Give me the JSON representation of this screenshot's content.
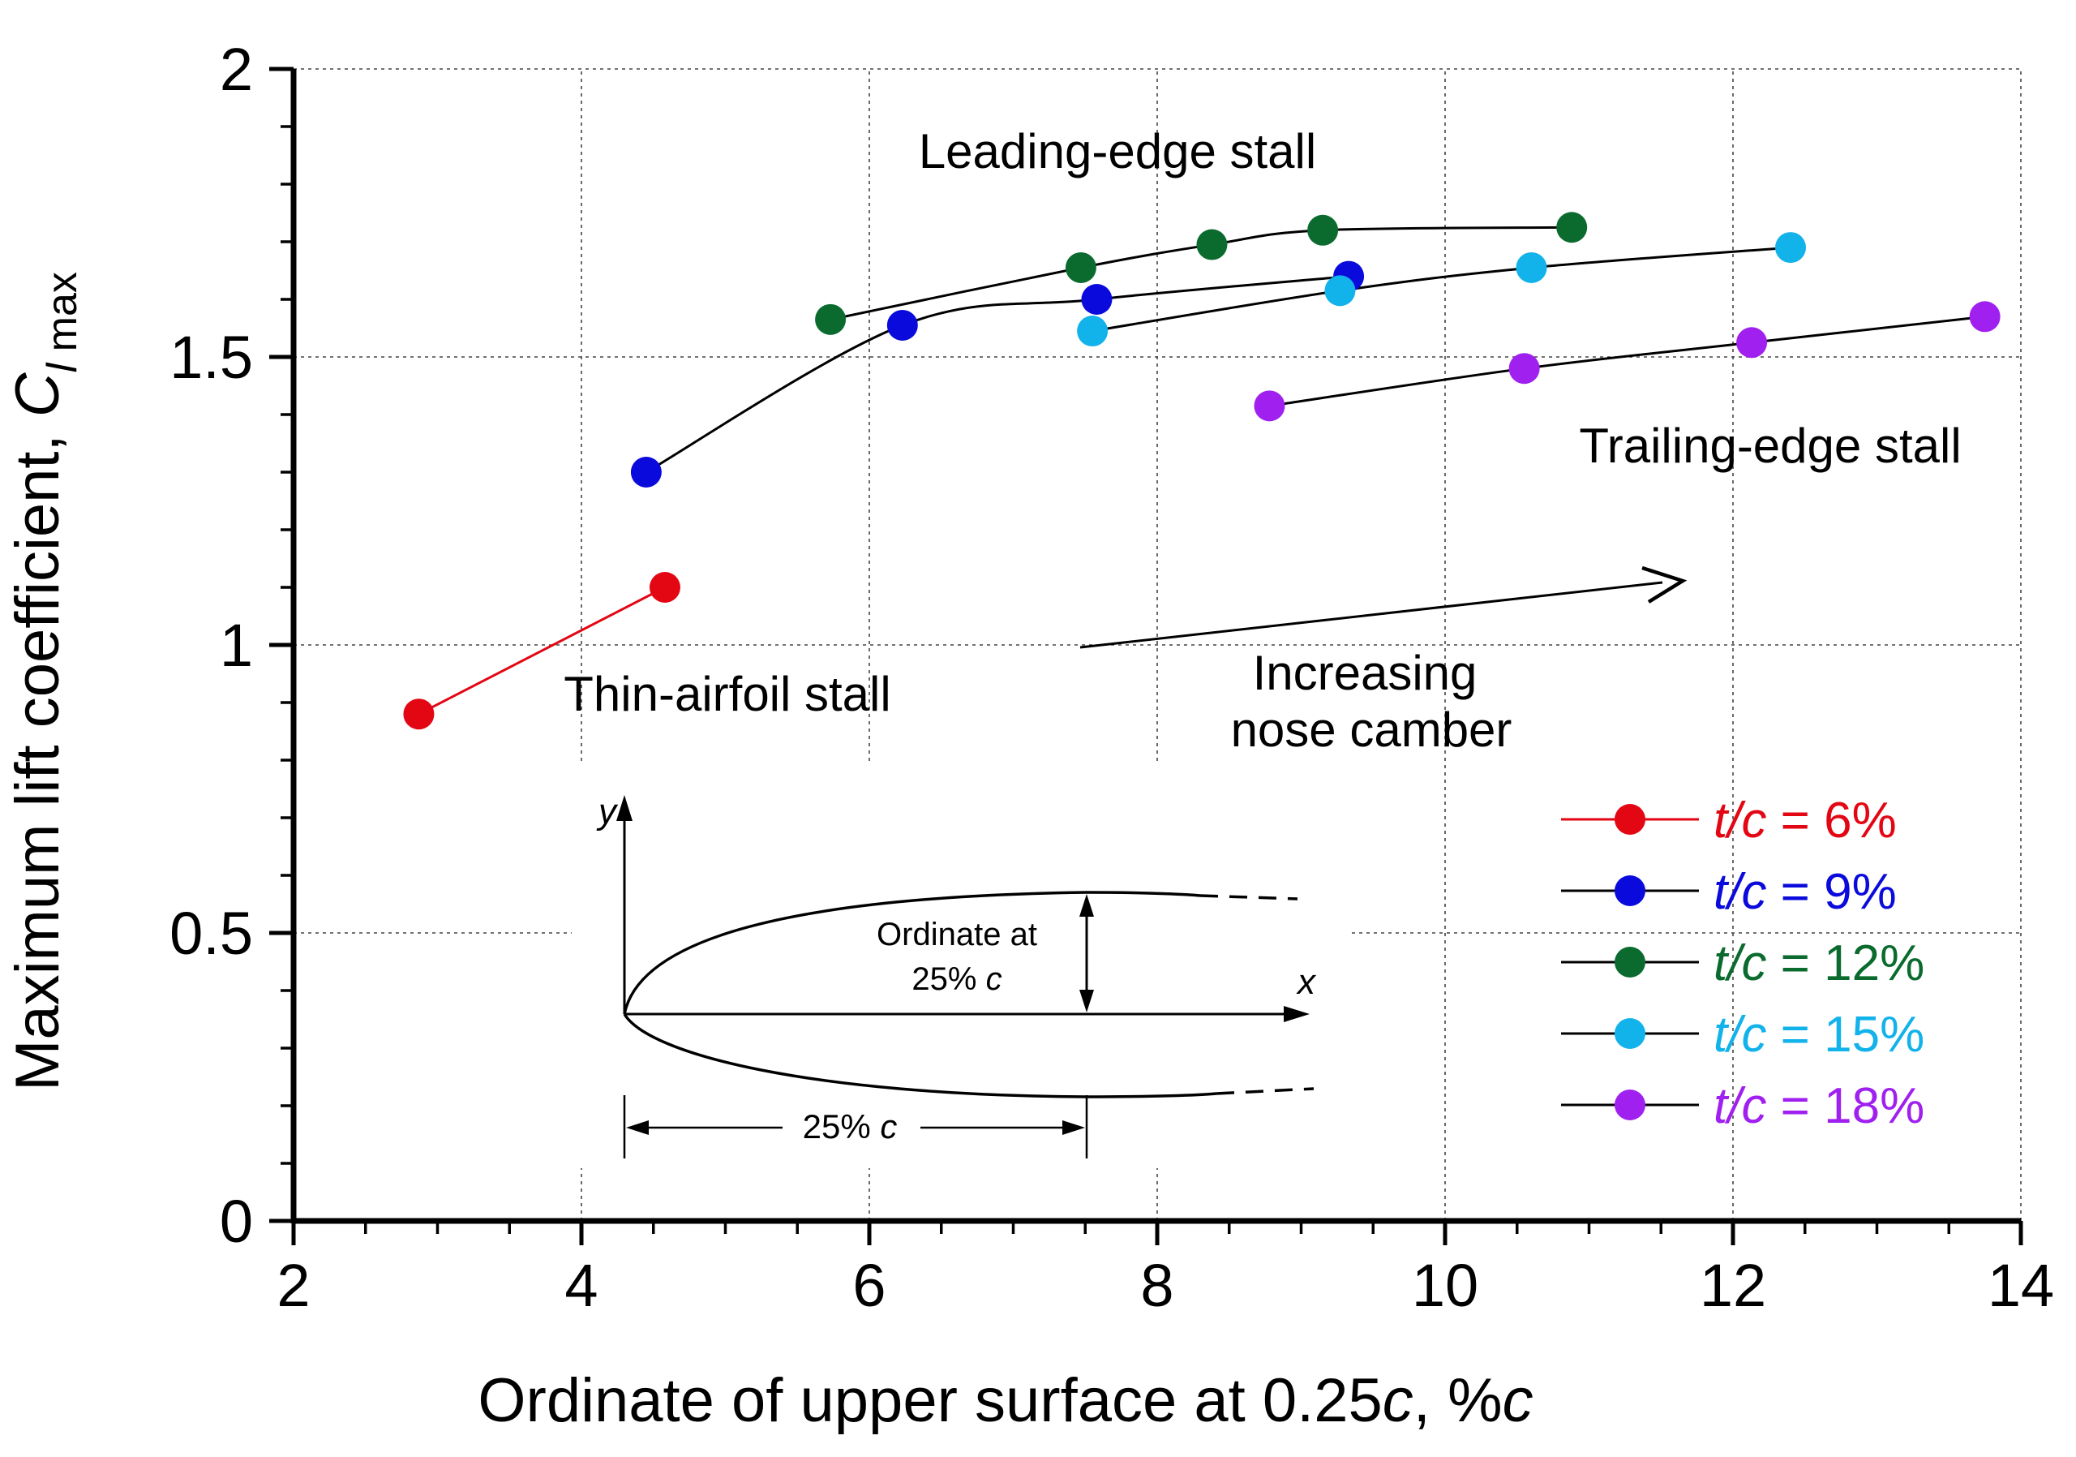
{
  "chart_data": {
    "type": "scatter",
    "xlabel_main": "Ordinate of upper surface at 0.25",
    "xlabel_italic": "c",
    "xlabel_sep": ", %",
    "xlabel_italic2": "c",
    "ylabel_main": "Maximum lift coefficient, ",
    "ylabel_italic": "C",
    "ylabel_sub_italic": "l",
    "ylabel_sub": " max",
    "xlim": [
      2,
      14
    ],
    "ylim": [
      0,
      2
    ],
    "xticks": [
      2,
      4,
      6,
      8,
      10,
      12,
      14
    ],
    "xtick_labels": [
      "2",
      "4",
      "6",
      "8",
      "10",
      "12",
      "14"
    ],
    "yticks": [
      0,
      0.5,
      1,
      1.5,
      2
    ],
    "ytick_labels": [
      "0",
      "0.5",
      "1",
      "1.5",
      "2"
    ],
    "grid": true,
    "legend_position": "bottom-right",
    "series": [
      {
        "name_prefix": "t/c",
        "name_value": " = 6%",
        "color": "#e30613",
        "line_color": "#e30613",
        "x": [
          2.87,
          4.58
        ],
        "y": [
          0.88,
          1.1
        ]
      },
      {
        "name_prefix": "t/c",
        "name_value": " = 9%",
        "color": "#0a0adc",
        "line_color": "#000000",
        "x": [
          4.45,
          6.23,
          7.58,
          9.33
        ],
        "y": [
          1.3,
          1.555,
          1.6,
          1.64
        ]
      },
      {
        "name_prefix": "t/c",
        "name_value": " = 12%",
        "color": "#0b6b2e",
        "line_color": "#000000",
        "x": [
          5.73,
          7.47,
          8.38,
          9.15,
          10.88
        ],
        "y": [
          1.565,
          1.655,
          1.695,
          1.72,
          1.725
        ]
      },
      {
        "name_prefix": "t/c",
        "name_value": " = 15%",
        "color": "#12b2ea",
        "line_color": "#000000",
        "x": [
          7.55,
          9.27,
          10.6,
          12.4
        ],
        "y": [
          1.545,
          1.615,
          1.655,
          1.69
        ]
      },
      {
        "name_prefix": "t/c",
        "name_value": " = 18%",
        "color": "#a020f0",
        "line_color": "#000000",
        "x": [
          8.78,
          10.55,
          12.13,
          13.75
        ],
        "y": [
          1.415,
          1.48,
          1.525,
          1.57
        ]
      }
    ],
    "annotations": {
      "leading_edge": "Leading-edge stall",
      "trailing_edge": "Trailing-edge stall",
      "thin_airfoil": "Thin-airfoil stall",
      "increasing_line1": "Increasing",
      "increasing_line2": "nose camber"
    },
    "inset": {
      "y_axis": "y",
      "x_axis": "x",
      "ordinate_line1": "Ordinate at",
      "ordinate_line2_prefix": "25% ",
      "ordinate_line2_italic": "c",
      "dim_prefix": "25% ",
      "dim_italic": "c"
    }
  }
}
